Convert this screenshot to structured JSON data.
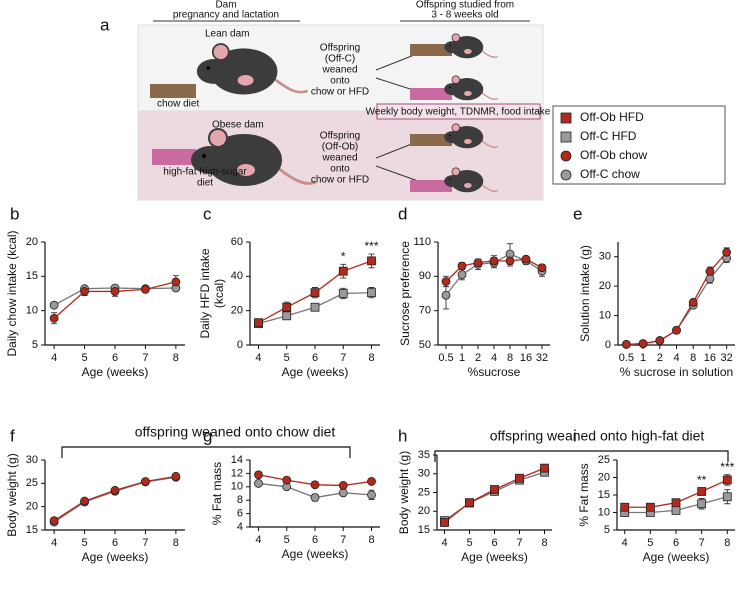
{
  "diagram": {
    "panel": "a",
    "dam_header": [
      "Dam",
      "pregnancy and lactation"
    ],
    "offspring_header": [
      "Offspring studied from",
      "3 - 8 weeks old"
    ],
    "lean_dam": "Lean dam",
    "chow_diet": "chow diet",
    "off_c": [
      "Offspring",
      "(Off-C)",
      "weaned",
      "onto",
      "chow or HFD"
    ],
    "measures": "Weekly body weight, TDNMR, food intake",
    "obese_dam": "Obese dam",
    "off_ob": [
      "Offspring",
      "(Off-Ob)",
      "weaned",
      "onto",
      "chow or HFD"
    ],
    "hfhs_diet": [
      "high-fat high-sugar",
      "diet"
    ]
  },
  "group_labels": [
    "offspring weaned onto chow diet",
    "offspring weaned onto high-fat diet"
  ],
  "chart_data": [
    {
      "type": "line",
      "panel": "b",
      "y_label": "Daily chow intake (kcal)",
      "x_label": "Age (weeks)",
      "x": [
        4,
        5,
        6,
        7,
        8
      ],
      "xlim": [
        3.7,
        8.3
      ],
      "xticks": [
        4,
        5,
        6,
        7,
        8
      ],
      "ylim": [
        5,
        20
      ],
      "yticks": [
        5,
        10,
        15,
        20
      ],
      "series": [
        {
          "name": "Off-Ob chow",
          "color": "#b22a1e",
          "marker": "circle",
          "values": [
            8.9,
            12.8,
            12.8,
            13.1,
            14.2
          ],
          "errors": [
            0.8,
            0.6,
            0.7,
            0.4,
            0.9
          ]
        },
        {
          "name": "Off-C chow",
          "color": "#9a9a9a",
          "marker": "circle",
          "values": [
            10.8,
            13.2,
            13.3,
            13.2,
            13.3
          ],
          "errors": [
            0.3,
            0.4,
            0.4,
            0.3,
            0.3
          ]
        }
      ]
    },
    {
      "type": "line",
      "panel": "c",
      "y_label": [
        "Daily HFD intake",
        "(kcal)"
      ],
      "x_label": "Age (weeks)",
      "x": [
        4,
        5,
        6,
        7,
        8
      ],
      "xlim": [
        3.7,
        8.3
      ],
      "xticks": [
        4,
        5,
        6,
        7,
        8
      ],
      "ylim": [
        0,
        60
      ],
      "yticks": [
        0,
        20,
        40,
        60
      ],
      "series": [
        {
          "name": "Off-Ob HFD",
          "color": "#b22a1e",
          "marker": "square",
          "values": [
            13,
            22,
            30.5,
            43,
            49
          ],
          "errors": [
            1.5,
            3,
            3,
            4,
            4
          ]
        },
        {
          "name": "Off-C HFD",
          "color": "#9a9a9a",
          "marker": "square",
          "values": [
            12.5,
            17,
            22,
            30,
            30.5
          ],
          "errors": [
            1,
            1.5,
            2,
            3,
            3
          ]
        }
      ],
      "annotations": [
        {
          "x": 7,
          "text": "*"
        },
        {
          "x": 8,
          "text": "***"
        }
      ]
    },
    {
      "type": "line",
      "panel": "d",
      "y_label": "Sucrose preference",
      "x_label": "%sucrose",
      "categories": [
        "0.5",
        "1",
        "2",
        "4",
        "8",
        "16",
        "32"
      ],
      "ylim": [
        50,
        110
      ],
      "yticks": [
        50,
        70,
        90,
        110
      ],
      "series": [
        {
          "name": "Off-Ob chow",
          "color": "#b22a1e",
          "marker": "circle",
          "values": [
            87,
            96,
            98,
            99,
            99,
            100,
            95
          ],
          "errors": [
            3,
            2,
            2,
            3,
            3,
            1,
            2
          ]
        },
        {
          "name": "Off-C chow",
          "color": "#9a9a9a",
          "marker": "circle",
          "values": [
            79,
            91,
            97,
            98,
            103,
            99,
            93
          ],
          "errors": [
            8,
            3,
            3,
            3,
            6,
            2,
            3
          ]
        }
      ]
    },
    {
      "type": "line",
      "panel": "e",
      "y_label": "Solution intake (g)",
      "x_label": "% sucrose in solution",
      "categories": [
        "0.5",
        "1",
        "2",
        "4",
        "8",
        "16",
        "32"
      ],
      "ylim": [
        0,
        35
      ],
      "yticks": [
        0,
        10,
        20,
        30
      ],
      "series": [
        {
          "name": "Off-Ob chow",
          "color": "#b22a1e",
          "marker": "circle",
          "values": [
            0.2,
            0.5,
            1.5,
            5,
            14.5,
            25,
            31.5
          ],
          "errors": [
            0.1,
            0.2,
            0.3,
            0.5,
            1,
            1.5,
            1.5
          ]
        },
        {
          "name": "Off-C chow",
          "color": "#9a9a9a",
          "marker": "circle",
          "values": [
            0.2,
            0.4,
            1.5,
            5,
            13.5,
            22.5,
            29.5
          ],
          "errors": [
            0.1,
            0.2,
            0.3,
            0.5,
            1,
            1.5,
            1.5
          ]
        }
      ]
    },
    {
      "type": "line",
      "panel": "f",
      "y_label": "Body weight (g)",
      "x_label": "Age (weeks)",
      "x": [
        4,
        5,
        6,
        7,
        8
      ],
      "xlim": [
        3.7,
        8.3
      ],
      "xticks": [
        4,
        5,
        6,
        7,
        8
      ],
      "ylim": [
        15,
        30
      ],
      "yticks": [
        15,
        20,
        25,
        30
      ],
      "series": [
        {
          "name": "Off-Ob chow",
          "color": "#b22a1e",
          "marker": "circle",
          "values": [
            17,
            21.2,
            23.5,
            25.4,
            26.5
          ],
          "errors": [
            0.4,
            0.3,
            0.3,
            0.3,
            0.4
          ]
        },
        {
          "name": "Off-C chow",
          "color": "#9a9a9a",
          "marker": "circle",
          "values": [
            16.7,
            21,
            23.3,
            25.3,
            26.3
          ],
          "errors": [
            0.3,
            0.3,
            0.3,
            0.3,
            0.3
          ]
        }
      ]
    },
    {
      "type": "line",
      "panel": "g",
      "y_label": "% Fat mass",
      "x_label": "Age (weeks)",
      "x": [
        4,
        5,
        6,
        7,
        8
      ],
      "xlim": [
        3.7,
        8.3
      ],
      "xticks": [
        4,
        5,
        6,
        7,
        8
      ],
      "ylim": [
        4,
        14
      ],
      "yticks": [
        4,
        6,
        8,
        10,
        12,
        14
      ],
      "series": [
        {
          "name": "Off-Ob chow",
          "color": "#b22a1e",
          "marker": "circle",
          "values": [
            11.8,
            11,
            10.3,
            10.2,
            10.8
          ],
          "errors": [
            0.3,
            0.3,
            0.3,
            0.3,
            0.4
          ]
        },
        {
          "name": "Off-C chow",
          "color": "#9a9a9a",
          "marker": "circle",
          "values": [
            10.5,
            10,
            8.4,
            9.1,
            8.8
          ],
          "errors": [
            0.3,
            0.3,
            0.5,
            0.4,
            0.7
          ]
        }
      ]
    },
    {
      "type": "line",
      "panel": "h",
      "y_label": "Body weight  (g)",
      "x_label": "Age (weeks)",
      "x": [
        4,
        5,
        6,
        7,
        8
      ],
      "xlim": [
        3.7,
        8.3
      ],
      "xticks": [
        4,
        5,
        6,
        7,
        8
      ],
      "ylim": [
        15,
        35
      ],
      "yticks": [
        15,
        20,
        25,
        30,
        35
      ],
      "series": [
        {
          "name": "Off-Ob HFD",
          "color": "#b22a1e",
          "marker": "square",
          "values": [
            17,
            22.3,
            25.8,
            28.8,
            31.5
          ],
          "errors": [
            0.4,
            0.3,
            0.4,
            0.4,
            0.5
          ]
        },
        {
          "name": "Off-C HFD",
          "color": "#9a9a9a",
          "marker": "square",
          "values": [
            17.5,
            22.2,
            25.3,
            28.3,
            30.4
          ],
          "errors": [
            0.3,
            0.3,
            0.4,
            0.4,
            0.5
          ]
        }
      ]
    },
    {
      "type": "line",
      "panel": "i",
      "y_label": "% Fat mass",
      "x_label": "Age (weeks)",
      "x": [
        4,
        5,
        6,
        7,
        8
      ],
      "xlim": [
        3.7,
        8.3
      ],
      "xticks": [
        4,
        5,
        6,
        7,
        8
      ],
      "ylim": [
        5,
        25
      ],
      "yticks": [
        5,
        10,
        15,
        20,
        25
      ],
      "series": [
        {
          "name": "Off-Ob HFD",
          "color": "#b22a1e",
          "marker": "square",
          "values": [
            11.5,
            11.5,
            12.8,
            16,
            19.3
          ],
          "errors": [
            0.5,
            0.5,
            0.6,
            1,
            1.5
          ]
        },
        {
          "name": "Off-C HFD",
          "color": "#9a9a9a",
          "marker": "square",
          "values": [
            10,
            10,
            10.6,
            12.5,
            14.5
          ],
          "errors": [
            0.6,
            0.8,
            1,
            1.5,
            2
          ]
        }
      ],
      "annotations": [
        {
          "x": 7,
          "text": "**"
        },
        {
          "x": 8,
          "text": "***"
        }
      ]
    }
  ]
}
